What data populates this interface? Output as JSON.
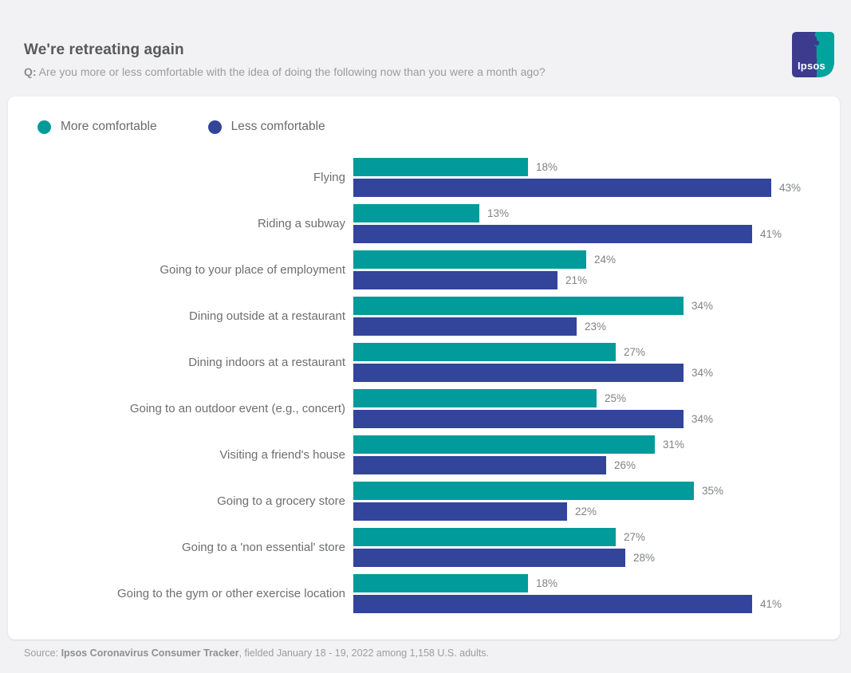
{
  "header": {
    "title": "We're retreating again",
    "q_label": "Q:",
    "q_text": " Are you more or less comfortable with the idea of doing the following now than you were a month ago?",
    "logo_text": "Ipsos"
  },
  "legend": [
    {
      "label": "More comfortable",
      "color": "#009B9A"
    },
    {
      "label": "Less comfortable",
      "color": "#33449B"
    }
  ],
  "chart_data": {
    "type": "bar",
    "orientation": "horizontal",
    "value_suffix": "%",
    "categories": [
      "Flying",
      "Riding a subway",
      "Going to your place of employment",
      "Dining outside at a restaurant",
      "Dining indoors at a restaurant",
      "Going to an outdoor event (e.g., concert)",
      "Visiting a friend's house",
      "Going to a grocery store",
      "Going to a 'non essential' store",
      "Going to the gym or other exercise location"
    ],
    "series": [
      {
        "name": "More comfortable",
        "color": "#009B9A",
        "values": [
          18,
          13,
          24,
          34,
          27,
          25,
          31,
          35,
          27,
          18
        ]
      },
      {
        "name": "Less comfortable",
        "color": "#33449B",
        "values": [
          43,
          41,
          21,
          23,
          34,
          34,
          26,
          22,
          28,
          41
        ]
      }
    ],
    "xlim": [
      0,
      45
    ],
    "grid": false,
    "legend_position": "top-left",
    "value_labels": "outside-end"
  },
  "footer": {
    "source_prefix": "Source: ",
    "source_bold": "Ipsos Coronavirus Consumer Tracker",
    "source_rest": ", fielded January 18 - 19, 2022 among 1,158 U.S. adults."
  },
  "colors": {
    "background": "#F2F2F4",
    "card": "#FFFFFF",
    "logo_blue": "#3C3B8E",
    "logo_teal": "#00A49C",
    "title_text": "#58595B",
    "muted_text": "#9B9C9E"
  }
}
